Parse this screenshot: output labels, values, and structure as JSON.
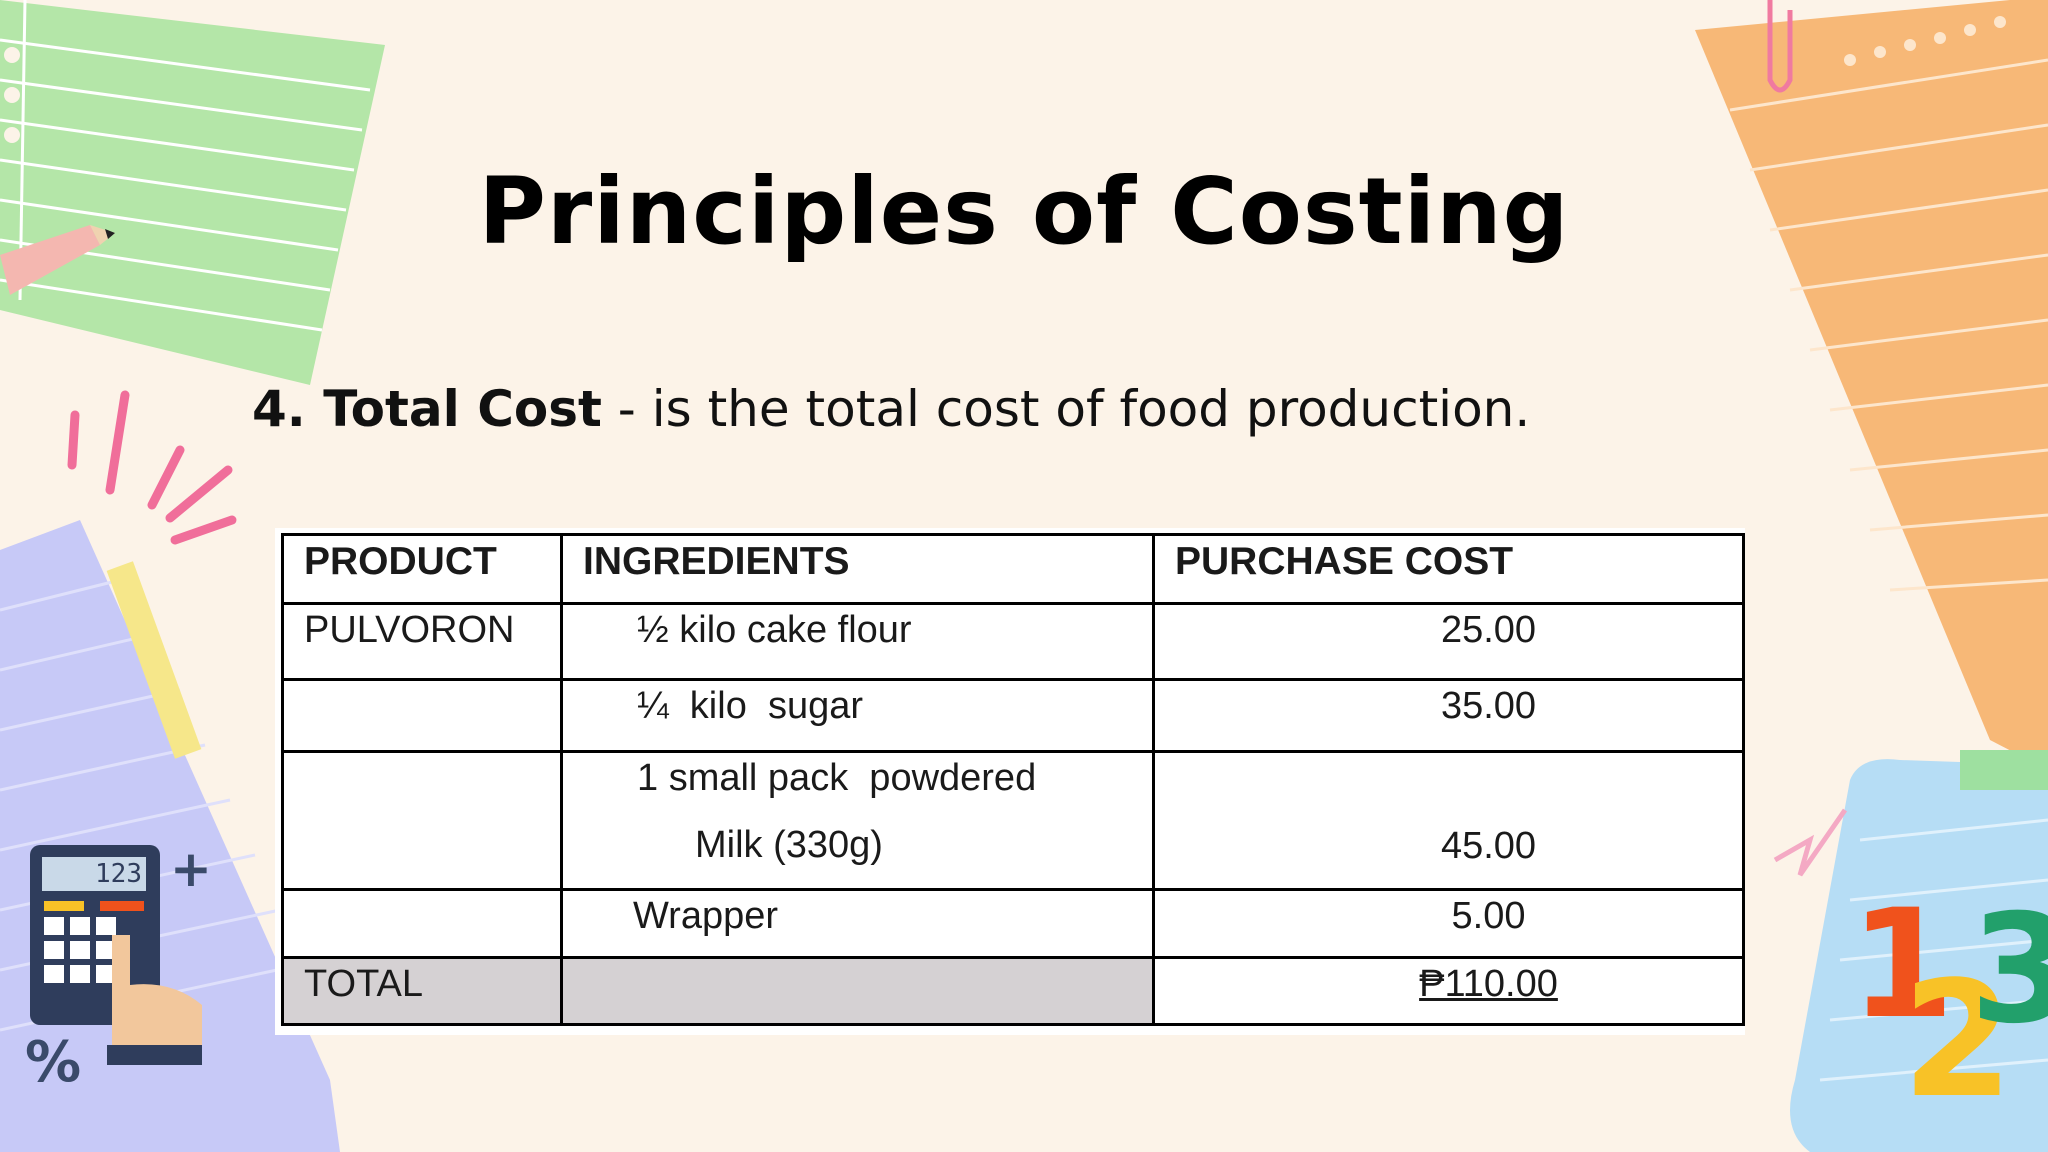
{
  "title": "Principles of Costing",
  "definition": {
    "term": "4. Total Cost",
    "text": " - is the total cost of food production."
  },
  "table": {
    "headers": [
      "PRODUCT",
      "INGREDIENTS",
      "PURCHASE COST"
    ],
    "rows": [
      {
        "product": "PULVORON",
        "ingredient": "½ kilo cake flour",
        "cost": "25.00"
      },
      {
        "product": "",
        "ingredient": "¼  kilo  sugar",
        "cost": "35.00"
      },
      {
        "product": "",
        "ingredient": "1 small pack  powdered",
        "ingredient_line2": "Milk (330g)",
        "cost": "45.00"
      },
      {
        "product": "",
        "ingredient": "Wrapper",
        "cost": "5.00"
      }
    ],
    "total": {
      "label": "TOTAL",
      "cost": "₱110.00"
    }
  },
  "icons": {
    "calculator_display": "123",
    "percent_sign": "%",
    "numbers_sticker": [
      "1",
      "2",
      "3"
    ]
  },
  "colors": {
    "background": "#fcf3e8",
    "green_paper": "#b4e6a8",
    "orange_paper": "#f7b877",
    "purple_paper": "#c7c9f7",
    "blue_paper": "#b6ddf5",
    "total_row_shade": "#d5d1d3"
  }
}
